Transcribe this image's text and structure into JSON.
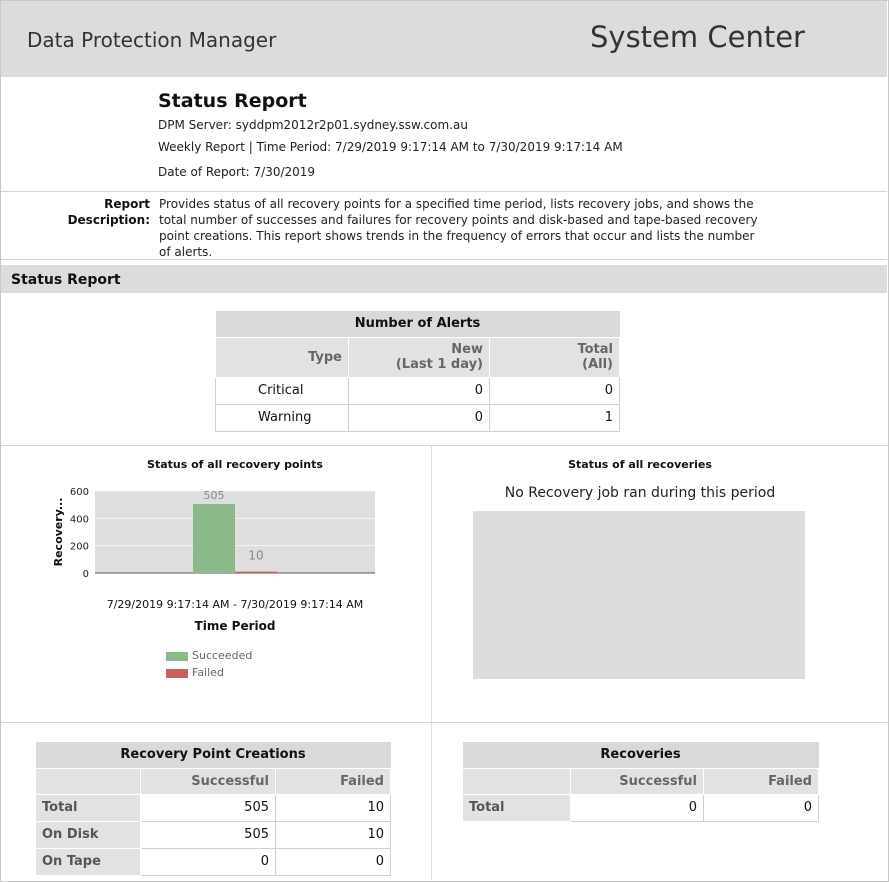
{
  "header": {
    "app_title": "Data Protection Manager",
    "brand": "System Center"
  },
  "report": {
    "title": "Status Report",
    "server": "DPM Server: syddpm2012r2p01.sydney.ssw.com.au",
    "period": "Weekly Report | Time Period: 7/29/2019 9:17:14 AM to 7/30/2019 9:17:14 AM",
    "date": "Date of Report: 7/30/2019",
    "desc_label_1": "Report",
    "desc_label_2": "Description:",
    "description": "Provides status of all recovery points for a specified time period, lists recovery jobs, and shows the total number of successes and failures for recovery points and disk-based and tape-based recovery point creations. This report shows trends in the frequency of errors that occur and lists the number of alerts."
  },
  "section_title": "Status Report",
  "alerts": {
    "title": "Number of Alerts",
    "col_type": "Type",
    "col_new": [
      "New",
      "(Last 1 day)"
    ],
    "col_total": [
      "Total",
      "(All)"
    ],
    "rows": [
      {
        "type": "Critical",
        "new": "0",
        "total": "0"
      },
      {
        "type": "Warning",
        "new": "0",
        "total": "1"
      }
    ]
  },
  "chart_data": {
    "type": "bar",
    "title": "Status of all recovery points",
    "xlabel": "Time Period",
    "ylabel": "Recovery...",
    "categories": [
      "7/29/2019 9:17:14 AM - 7/30/2019 9:17:14 AM"
    ],
    "series": [
      {
        "name": "Succeeded",
        "values": [
          505
        ],
        "color": "#8cb98a"
      },
      {
        "name": "Failed",
        "values": [
          10
        ],
        "color": "#c9625f"
      }
    ],
    "ylim": [
      0,
      600
    ],
    "yticks": [
      "600",
      "400",
      "200",
      "0"
    ],
    "grid": true,
    "legend": "bottom"
  },
  "recoveries_chart": {
    "title": "Status of all recoveries",
    "message": "No Recovery job ran during this period"
  },
  "rp_creations": {
    "title": "Recovery Point Creations",
    "col_success": "Successful",
    "col_failed": "Failed",
    "rows": [
      {
        "label": "Total",
        "success": "505",
        "failed": "10"
      },
      {
        "label": "On Disk",
        "success": "505",
        "failed": "10"
      },
      {
        "label": "On Tape",
        "success": "0",
        "failed": "0"
      }
    ]
  },
  "recoveries": {
    "title": "Recoveries",
    "col_success": "Successful",
    "col_failed": "Failed",
    "rows": [
      {
        "label": "Total",
        "success": "0",
        "failed": "0"
      }
    ]
  }
}
